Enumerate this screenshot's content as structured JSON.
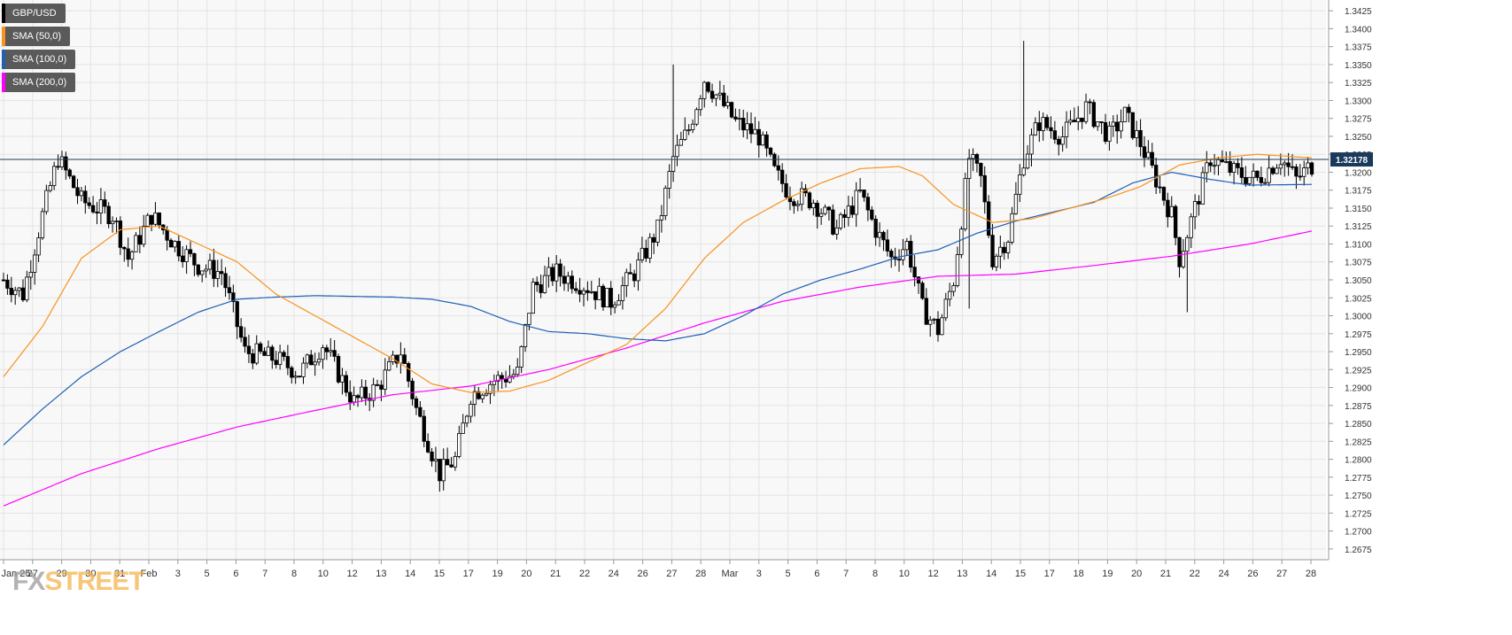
{
  "legend": [
    {
      "label": "GBP/USD",
      "color": "#000000"
    },
    {
      "label": "SMA (50,0)",
      "color": "#f7931e"
    },
    {
      "label": "SMA (100,0)",
      "color": "#1f5fb4"
    },
    {
      "label": "SMA (200,0)",
      "color": "#ff00ff"
    }
  ],
  "watermark": {
    "prefix": "FX",
    "suffix": "STREET"
  },
  "last_price_label": "1.32178",
  "chart_data": {
    "type": "candlestick",
    "title": "",
    "symbol": "GBP/USD",
    "x_tick_labels": [
      "Jan 25",
      "27",
      "29",
      "30",
      "31",
      "Feb",
      "3",
      "5",
      "6",
      "7",
      "8",
      "10",
      "12",
      "13",
      "14",
      "15",
      "17",
      "19",
      "20",
      "21",
      "22",
      "24",
      "26",
      "27",
      "28",
      "Mar",
      "3",
      "5",
      "6",
      "7",
      "8",
      "10",
      "12",
      "13",
      "14",
      "15",
      "17",
      "18",
      "19",
      "20",
      "21",
      "22",
      "24",
      "26",
      "27",
      "28"
    ],
    "y_ticks": [
      1.2675,
      1.27,
      1.2725,
      1.275,
      1.2775,
      1.28,
      1.2825,
      1.285,
      1.2875,
      1.29,
      1.2925,
      1.295,
      1.2975,
      1.3,
      1.3025,
      1.305,
      1.3075,
      1.31,
      1.3125,
      1.315,
      1.3175,
      1.32,
      1.3225,
      1.325,
      1.3275,
      1.33,
      1.3325,
      1.335,
      1.3375,
      1.34,
      1.3425
    ],
    "ylim": [
      1.266,
      1.344
    ],
    "current_price": 1.32178,
    "grid": true,
    "legend_position": "top-left",
    "anchors": [
      [
        0,
        1.305
      ],
      [
        5,
        1.303
      ],
      [
        10,
        1.314
      ],
      [
        14,
        1.322
      ],
      [
        20,
        1.316
      ],
      [
        28,
        1.314
      ],
      [
        32,
        1.308
      ],
      [
        38,
        1.314
      ],
      [
        44,
        1.31
      ],
      [
        50,
        1.307
      ],
      [
        56,
        1.306
      ],
      [
        62,
        1.295
      ],
      [
        70,
        1.294
      ],
      [
        76,
        1.292
      ],
      [
        82,
        1.296
      ],
      [
        90,
        1.288
      ],
      [
        96,
        1.29
      ],
      [
        102,
        1.295
      ],
      [
        106,
        1.287
      ],
      [
        112,
        1.278
      ],
      [
        116,
        1.28
      ],
      [
        120,
        1.289
      ],
      [
        126,
        1.291
      ],
      [
        132,
        1.292
      ],
      [
        136,
        1.304
      ],
      [
        142,
        1.306
      ],
      [
        150,
        1.304
      ],
      [
        156,
        1.302
      ],
      [
        162,
        1.306
      ],
      [
        168,
        1.312
      ],
      [
        172,
        1.322
      ],
      [
        176,
        1.326
      ],
      [
        180,
        1.333
      ],
      [
        184,
        1.33
      ],
      [
        188,
        1.327
      ],
      [
        194,
        1.325
      ],
      [
        198,
        1.32
      ],
      [
        202,
        1.317
      ],
      [
        208,
        1.316
      ],
      [
        214,
        1.312
      ],
      [
        220,
        1.317
      ],
      [
        224,
        1.312
      ],
      [
        228,
        1.308
      ],
      [
        232,
        1.31
      ],
      [
        236,
        1.301
      ],
      [
        240,
        1.298
      ],
      [
        244,
        1.305
      ],
      [
        248,
        1.322
      ],
      [
        251,
        1.319
      ],
      [
        254,
        1.308
      ],
      [
        258,
        1.311
      ],
      [
        262,
        1.322
      ],
      [
        266,
        1.327
      ],
      [
        272,
        1.325
      ],
      [
        278,
        1.329
      ],
      [
        284,
        1.325
      ],
      [
        288,
        1.328
      ],
      [
        292,
        1.324
      ],
      [
        296,
        1.319
      ],
      [
        300,
        1.314
      ],
      [
        302,
        1.308
      ],
      [
        306,
        1.315
      ],
      [
        310,
        1.322
      ],
      [
        316,
        1.32
      ],
      [
        322,
        1.319
      ],
      [
        328,
        1.322
      ],
      [
        332,
        1.319
      ],
      [
        336,
        1.321
      ]
    ],
    "sma_50": [
      [
        0,
        1.2915
      ],
      [
        10,
        1.2985
      ],
      [
        20,
        1.308
      ],
      [
        30,
        1.312
      ],
      [
        40,
        1.3125
      ],
      [
        50,
        1.31
      ],
      [
        60,
        1.3075
      ],
      [
        70,
        1.303
      ],
      [
        80,
        1.3
      ],
      [
        90,
        1.297
      ],
      [
        100,
        1.294
      ],
      [
        110,
        1.2905
      ],
      [
        120,
        1.2893
      ],
      [
        130,
        1.2895
      ],
      [
        140,
        1.291
      ],
      [
        150,
        1.2935
      ],
      [
        160,
        1.296
      ],
      [
        170,
        1.301
      ],
      [
        180,
        1.308
      ],
      [
        190,
        1.313
      ],
      [
        200,
        1.316
      ],
      [
        210,
        1.3185
      ],
      [
        220,
        1.3205
      ],
      [
        230,
        1.3208
      ],
      [
        236,
        1.3195
      ],
      [
        244,
        1.3155
      ],
      [
        254,
        1.313
      ],
      [
        264,
        1.3135
      ],
      [
        274,
        1.315
      ],
      [
        284,
        1.3165
      ],
      [
        292,
        1.318
      ],
      [
        302,
        1.321
      ],
      [
        312,
        1.322
      ],
      [
        322,
        1.3225
      ],
      [
        336,
        1.322
      ]
    ],
    "sma_100": [
      [
        0,
        1.282
      ],
      [
        10,
        1.287
      ],
      [
        20,
        1.2915
      ],
      [
        30,
        1.295
      ],
      [
        40,
        1.2978
      ],
      [
        50,
        1.3005
      ],
      [
        60,
        1.3023
      ],
      [
        70,
        1.3026
      ],
      [
        80,
        1.3028
      ],
      [
        90,
        1.3027
      ],
      [
        100,
        1.3026
      ],
      [
        110,
        1.3023
      ],
      [
        120,
        1.3013
      ],
      [
        130,
        1.2992
      ],
      [
        140,
        1.2978
      ],
      [
        150,
        1.2975
      ],
      [
        160,
        1.2968
      ],
      [
        170,
        1.2965
      ],
      [
        180,
        1.2975
      ],
      [
        190,
        1.3
      ],
      [
        200,
        1.303
      ],
      [
        210,
        1.305
      ],
      [
        220,
        1.3065
      ],
      [
        230,
        1.3082
      ],
      [
        240,
        1.3092
      ],
      [
        250,
        1.3115
      ],
      [
        260,
        1.3132
      ],
      [
        270,
        1.3145
      ],
      [
        280,
        1.3158
      ],
      [
        290,
        1.3185
      ],
      [
        300,
        1.32
      ],
      [
        310,
        1.319
      ],
      [
        320,
        1.3182
      ],
      [
        336,
        1.3183
      ]
    ],
    "sma_200": [
      [
        0,
        1.2735
      ],
      [
        20,
        1.278
      ],
      [
        40,
        1.2815
      ],
      [
        60,
        1.2845
      ],
      [
        80,
        1.2868
      ],
      [
        100,
        1.289
      ],
      [
        120,
        1.2902
      ],
      [
        140,
        1.2925
      ],
      [
        160,
        1.2955
      ],
      [
        180,
        1.299
      ],
      [
        200,
        1.302
      ],
      [
        220,
        1.304
      ],
      [
        240,
        1.3055
      ],
      [
        260,
        1.3058
      ],
      [
        280,
        1.307
      ],
      [
        300,
        1.3083
      ],
      [
        320,
        1.31
      ],
      [
        336,
        1.3118
      ]
    ]
  }
}
